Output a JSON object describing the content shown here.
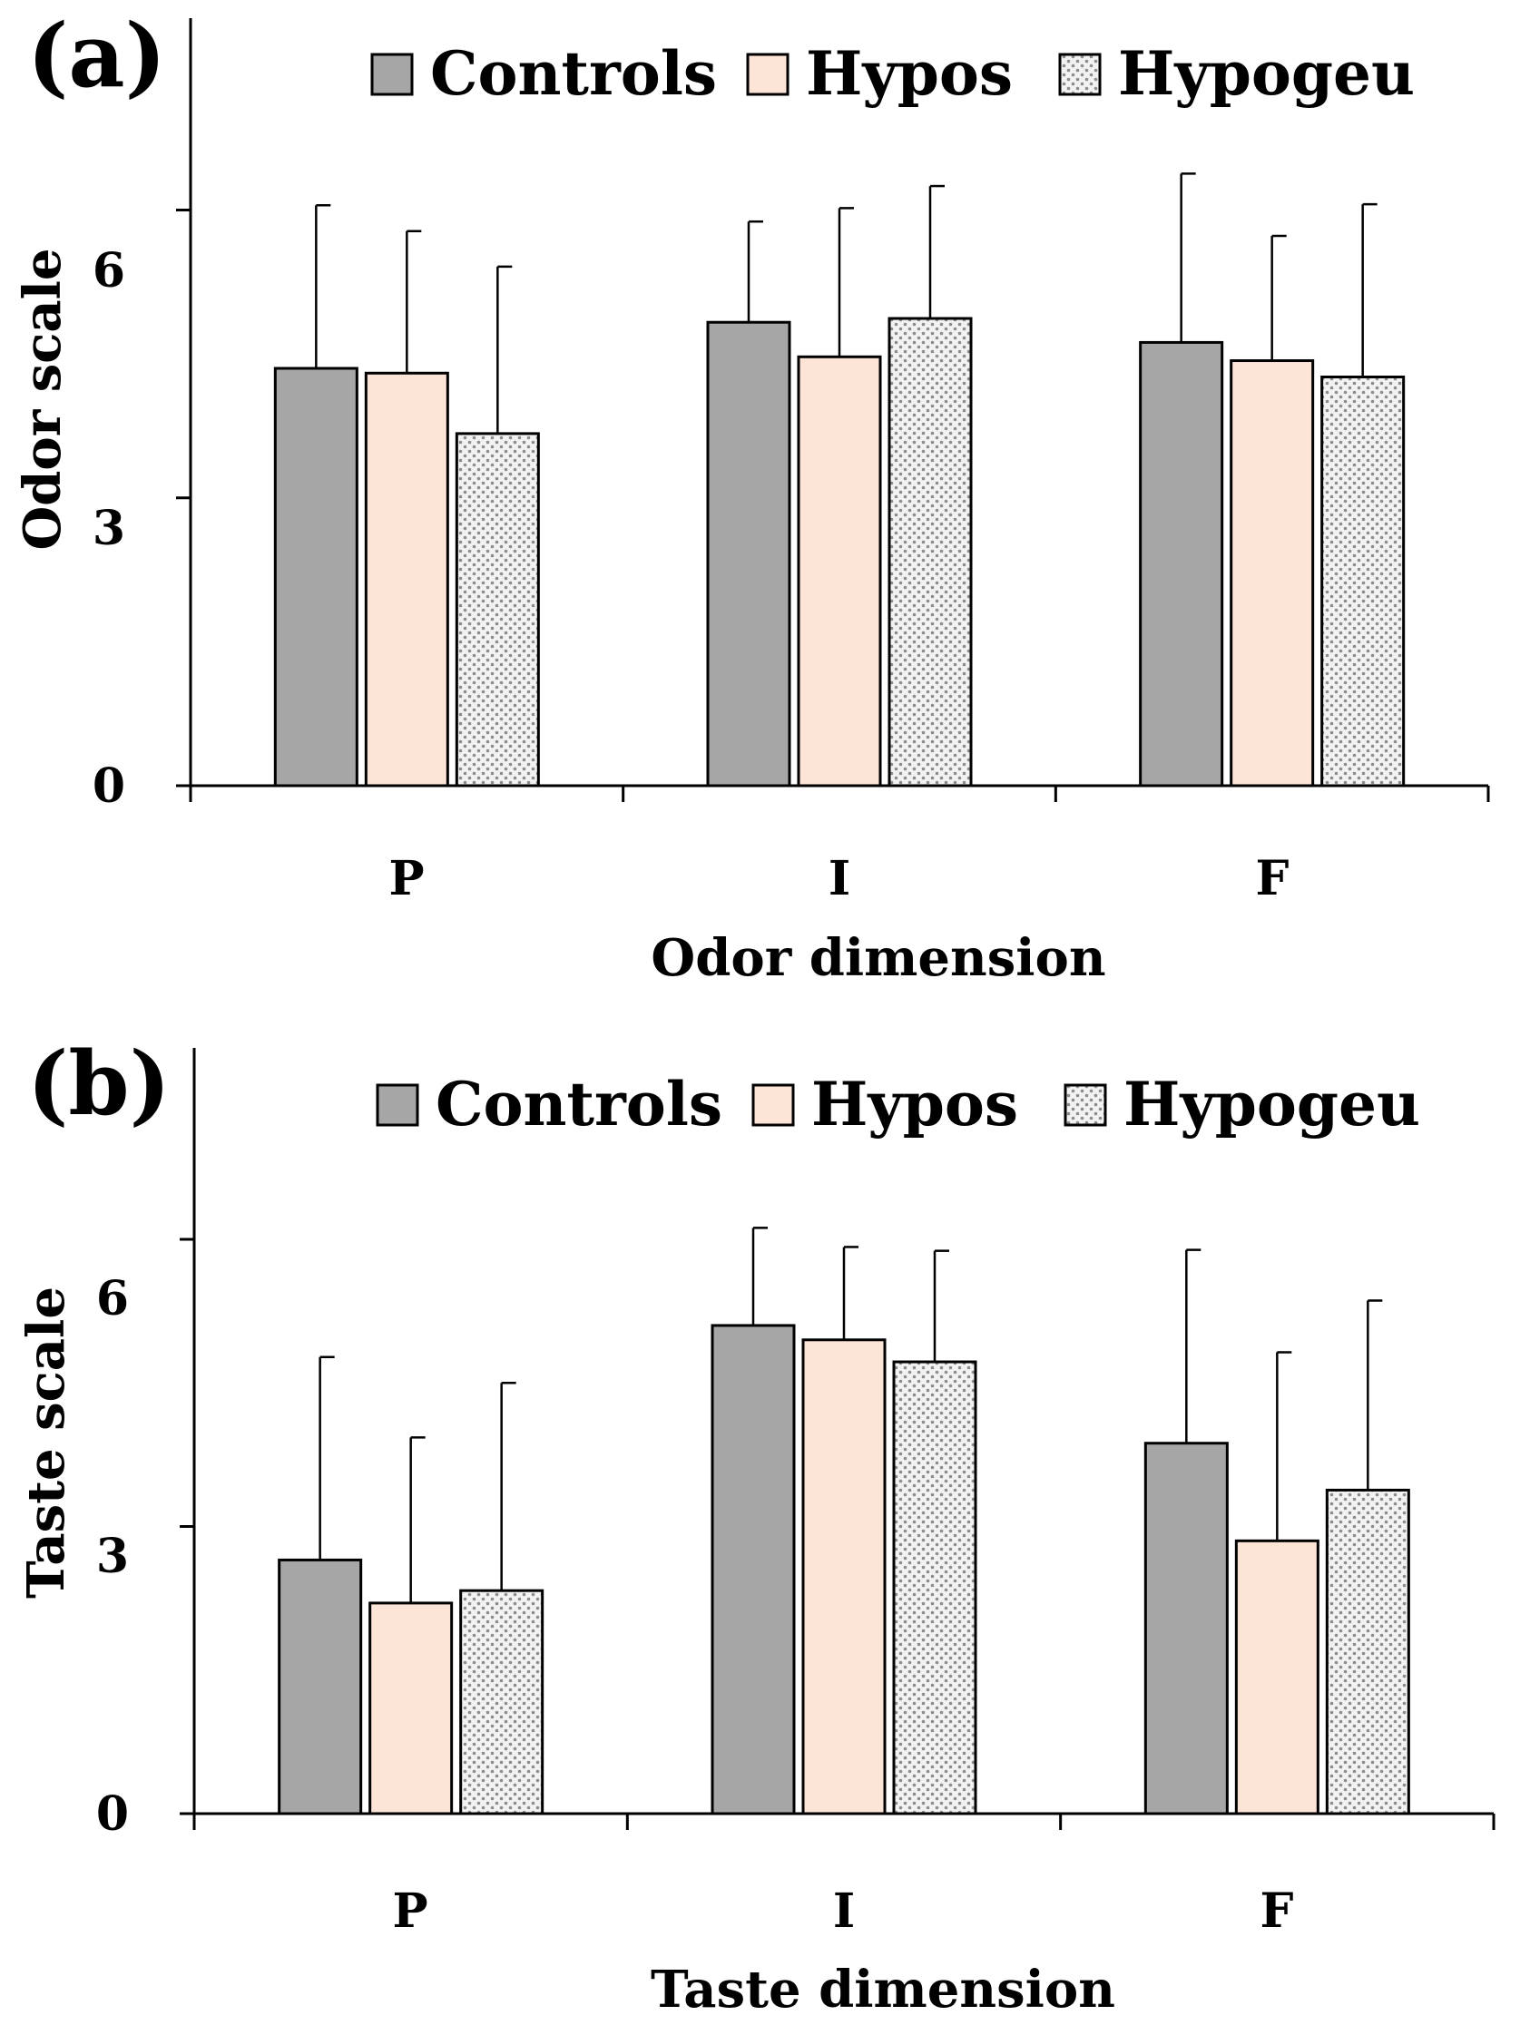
{
  "chart_data": [
    {
      "type": "bar",
      "panel_label": "(a)",
      "categories": [
        "P",
        "I",
        "F"
      ],
      "xlabel": "Odor dimension",
      "ylabel": "Odor scale",
      "ylim": [
        0,
        8
      ],
      "yticks": [
        "0",
        "3",
        "6"
      ],
      "ytick_values": [
        0,
        3,
        6
      ],
      "grid": false,
      "legend_position": "top",
      "series": [
        {
          "name": "Controls",
          "pattern": "solid",
          "values": [
            4.35,
            4.83,
            4.62
          ],
          "errors": [
            1.7,
            1.05,
            1.76
          ]
        },
        {
          "name": "Hypos",
          "pattern": "solid",
          "values": [
            4.3,
            4.47,
            4.43
          ],
          "errors": [
            1.48,
            1.55,
            1.3
          ]
        },
        {
          "name": "Hypogeu",
          "pattern": "dotted",
          "values": [
            3.67,
            4.87,
            4.26
          ],
          "errors": [
            1.74,
            1.38,
            1.8
          ]
        }
      ]
    },
    {
      "type": "bar",
      "panel_label": "(b)",
      "categories": [
        "P",
        "I",
        "F"
      ],
      "xlabel": "Taste dimension",
      "ylabel": "Taste scale",
      "ylim": [
        0,
        8
      ],
      "yticks": [
        "0",
        "3",
        "6"
      ],
      "ytick_values": [
        0,
        3,
        6
      ],
      "grid": false,
      "legend_position": "top",
      "series": [
        {
          "name": "Controls",
          "pattern": "solid",
          "values": [
            2.65,
            5.1,
            3.87
          ],
          "errors": [
            2.12,
            1.02,
            2.02
          ]
        },
        {
          "name": "Hypos",
          "pattern": "solid",
          "values": [
            2.2,
            4.95,
            2.85
          ],
          "errors": [
            1.73,
            0.97,
            1.97
          ]
        },
        {
          "name": "Hypogeu",
          "pattern": "dotted",
          "values": [
            2.33,
            4.72,
            3.38
          ],
          "errors": [
            2.17,
            1.16,
            1.98
          ]
        }
      ]
    }
  ],
  "colors": {
    "controls": "#a6a6a6",
    "hypos": "#fce4d6",
    "hypogeu_bg": "#f2f2f2",
    "hypogeu_dots": "#8c8c8c",
    "axis": "#000000"
  }
}
